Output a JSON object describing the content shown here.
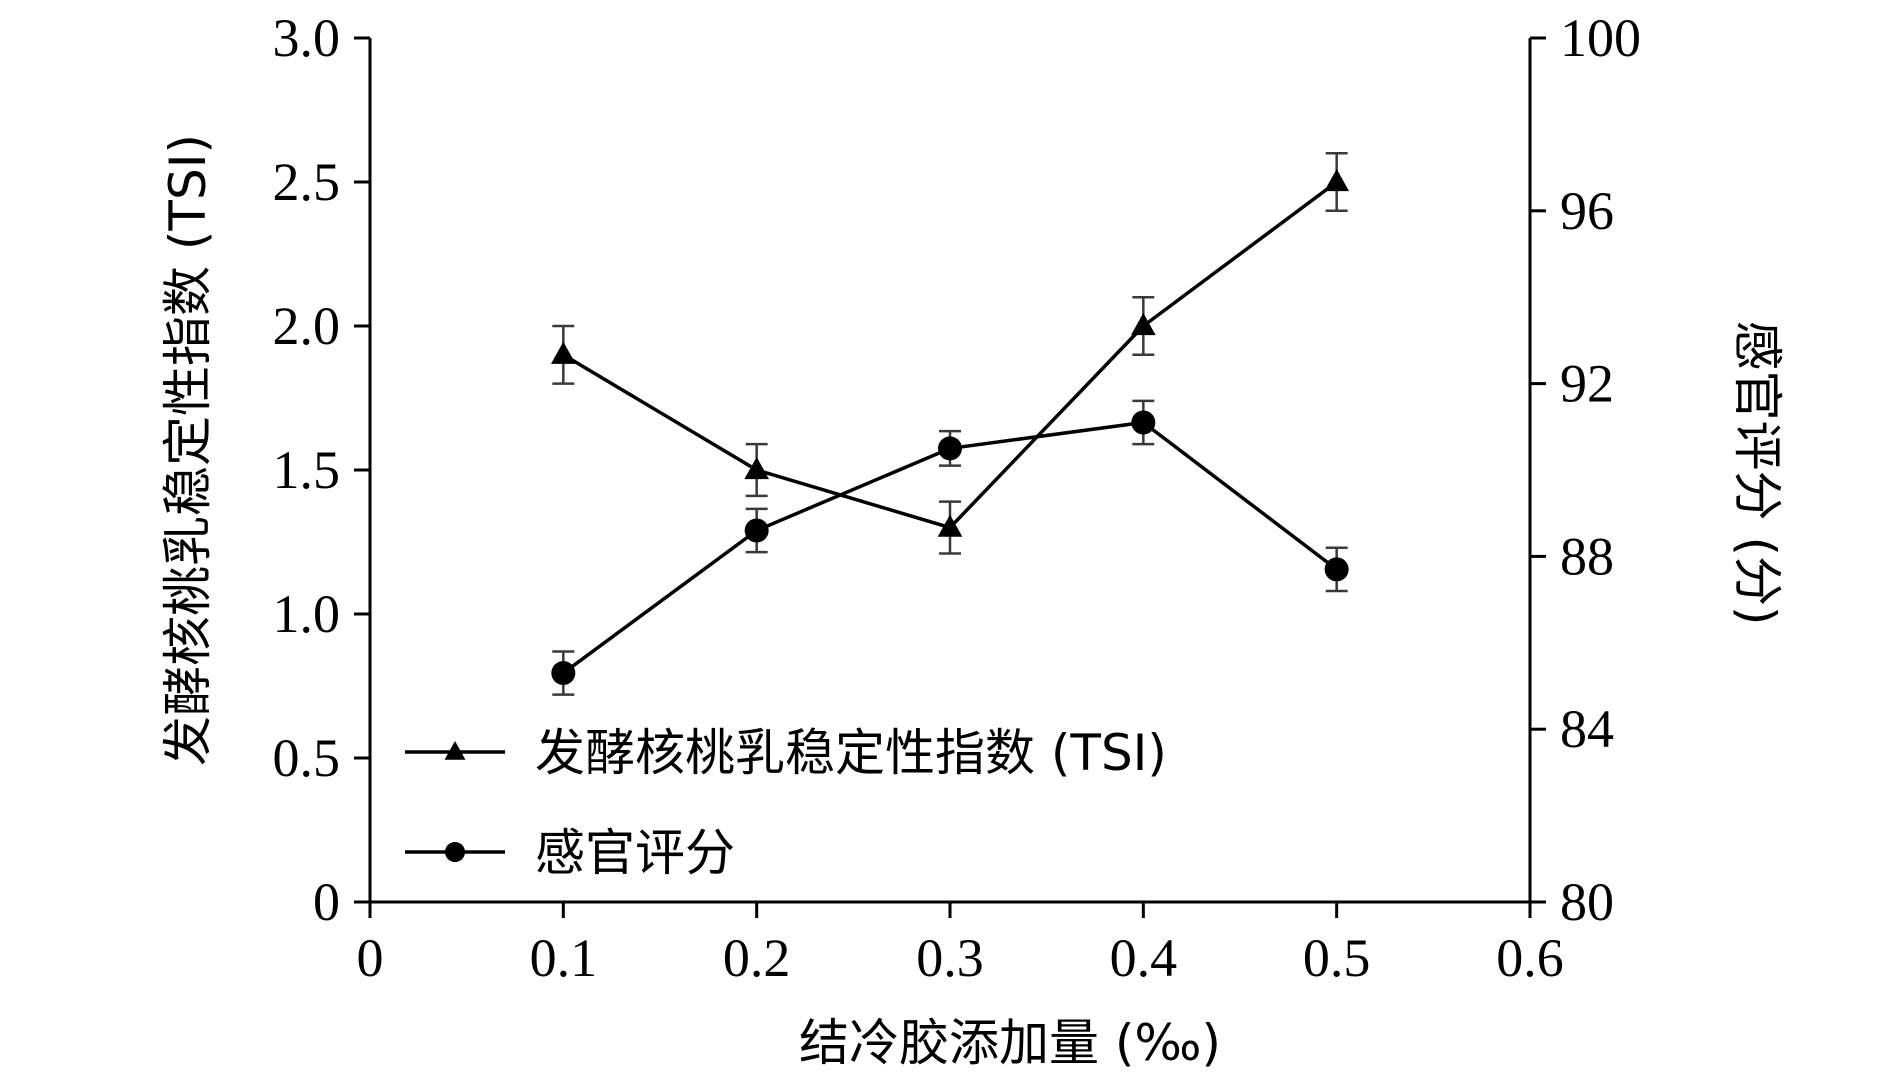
{
  "chart_data": {
    "type": "line",
    "x": [
      0.1,
      0.2,
      0.3,
      0.4,
      0.5
    ],
    "xlabel": "结冷胶添加量 (‰)",
    "xlim": [
      0,
      0.6
    ],
    "xticks": [
      "0",
      "0.1",
      "0.2",
      "0.3",
      "0.4",
      "0.5",
      "0.6"
    ],
    "ylabel_left": "发酵核桃乳稳定性指数 (TSI)",
    "ylim_left": [
      0,
      3.0
    ],
    "yticks_left": [
      "0",
      "0.5",
      "1.0",
      "1.5",
      "2.0",
      "2.5",
      "3.0"
    ],
    "ylabel_right": "感官评分 (分)",
    "ylim_right": [
      80,
      100
    ],
    "yticks_right": [
      "80",
      "84",
      "88",
      "92",
      "96",
      "100"
    ],
    "grid": false,
    "legend_position": "lower-left",
    "series": [
      {
        "name": "发酵核桃乳稳定性指数 (TSI)",
        "axis": "left",
        "marker": "triangle",
        "values": [
          1.9,
          1.5,
          1.3,
          2.0,
          2.5
        ],
        "errors": [
          0.1,
          0.09,
          0.09,
          0.1,
          0.1
        ]
      },
      {
        "name": "感官评分",
        "axis": "right",
        "marker": "circle",
        "values": [
          85.3,
          88.6,
          90.5,
          91.1,
          87.7
        ],
        "errors": [
          0.5,
          0.5,
          0.4,
          0.5,
          0.5
        ]
      }
    ]
  }
}
